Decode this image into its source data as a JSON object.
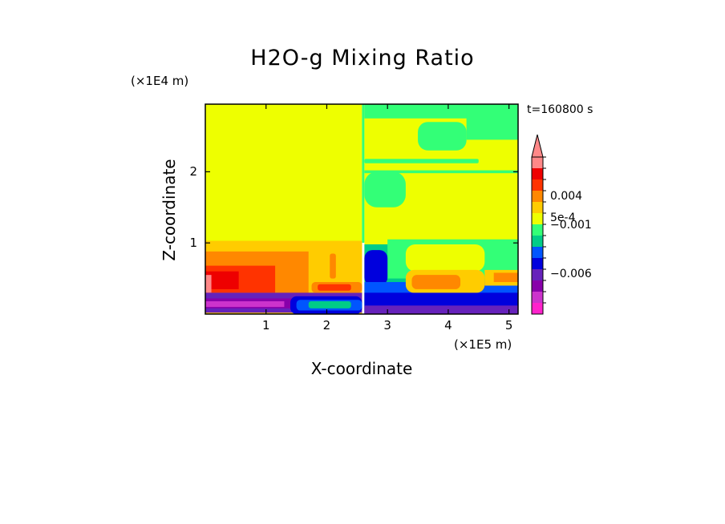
{
  "chart_data": {
    "type": "heatmap",
    "title": "H2O-g Mixing Ratio",
    "xlabel": "X-coordinate",
    "ylabel": "Z-coordinate",
    "x_scale_label": "(×1E5 m)",
    "y_scale_label": "(×1E4 m)",
    "time_label": "t=160800 s",
    "xlim": [
      0,
      5.15
    ],
    "ylim": [
      0,
      2.95
    ],
    "x_ticks": [
      1,
      2,
      3,
      4,
      5
    ],
    "y_ticks": [
      1,
      2
    ],
    "colorbar": {
      "labels": [
        {
          "text": "0.004",
          "level": 10.5
        },
        {
          "text": "5e-4",
          "level": 8.6
        },
        {
          "text": "−0.001",
          "level": 7.9
        },
        {
          "text": "−0.006",
          "level": 3.6
        }
      ],
      "colors": [
        "#ff22cc",
        "#cc33cc",
        "#8800aa",
        "#6622bb",
        "#0000dd",
        "#0055ff",
        "#00cc88",
        "#33ff77",
        "#eeff00",
        "#ffcc00",
        "#ff8800",
        "#ff3300",
        "#ee0000",
        "#ff8888"
      ]
    },
    "regions": [
      {
        "level": 8,
        "x": [
          0,
          2.58
        ],
        "y": [
          0,
          2.95
        ]
      },
      {
        "level": 7,
        "x": [
          2.58,
          2.62
        ],
        "y": [
          1.0,
          2.95
        ]
      },
      {
        "level": 9,
        "x": [
          0,
          2.58
        ],
        "y": [
          0.0,
          1.03
        ]
      },
      {
        "level": 10,
        "x": [
          0,
          1.7
        ],
        "y": [
          0.2,
          0.88
        ]
      },
      {
        "level": 11,
        "x": [
          0,
          1.15
        ],
        "y": [
          0.3,
          0.68
        ]
      },
      {
        "level": 12,
        "x": [
          0,
          0.55
        ],
        "y": [
          0.35,
          0.6
        ]
      },
      {
        "level": 13,
        "x": [
          0,
          0.1
        ],
        "y": [
          0.3,
          0.55
        ]
      },
      {
        "level": 3,
        "x": [
          0,
          2.58
        ],
        "y": [
          0.02,
          0.3
        ]
      },
      {
        "level": 2,
        "x": [
          0,
          1.5
        ],
        "y": [
          0.08,
          0.22
        ]
      },
      {
        "level": 1,
        "x": [
          0,
          1.3
        ],
        "y": [
          0.1,
          0.18
        ]
      },
      {
        "level": 4,
        "x": [
          1.4,
          2.58
        ],
        "y": [
          0.0,
          0.25
        ]
      },
      {
        "level": 5,
        "x": [
          1.5,
          2.58
        ],
        "y": [
          0.05,
          0.2
        ]
      },
      {
        "level": 6,
        "x": [
          1.7,
          2.4
        ],
        "y": [
          0.08,
          0.18
        ]
      },
      {
        "level": 10,
        "x": [
          1.75,
          2.58
        ],
        "y": [
          0.3,
          0.45
        ]
      },
      {
        "level": 11,
        "x": [
          1.85,
          2.4
        ],
        "y": [
          0.33,
          0.42
        ]
      },
      {
        "level": 9,
        "x": [
          2.0,
          2.2
        ],
        "y": [
          0.45,
          1.0
        ]
      },
      {
        "level": 10,
        "x": [
          2.05,
          2.15
        ],
        "y": [
          0.5,
          0.85
        ]
      },
      {
        "level": 8,
        "x": [
          2.62,
          5.15
        ],
        "y": [
          0,
          2.95
        ]
      },
      {
        "level": 7,
        "x": [
          2.62,
          5.15
        ],
        "y": [
          2.75,
          2.95
        ]
      },
      {
        "level": 7,
        "x": [
          3.5,
          4.3
        ],
        "y": [
          2.3,
          2.7
        ]
      },
      {
        "level": 7,
        "x": [
          4.3,
          5.15
        ],
        "y": [
          2.45,
          2.95
        ]
      },
      {
        "level": 7,
        "x": [
          2.62,
          5.15
        ],
        "y": [
          1.98,
          2.02
        ]
      },
      {
        "level": 7,
        "x": [
          2.62,
          4.5
        ],
        "y": [
          2.12,
          2.18
        ]
      },
      {
        "level": 7,
        "x": [
          2.62,
          3.3
        ],
        "y": [
          1.5,
          2.0
        ]
      },
      {
        "level": 6,
        "x": [
          2.62,
          5.15
        ],
        "y": [
          0,
          0.98
        ]
      },
      {
        "level": 7,
        "x": [
          3.0,
          5.15
        ],
        "y": [
          0.5,
          1.05
        ]
      },
      {
        "level": 8,
        "x": [
          3.3,
          4.6
        ],
        "y": [
          0.6,
          0.98
        ]
      },
      {
        "level": 4,
        "x": [
          2.62,
          3.0
        ],
        "y": [
          0.4,
          0.9
        ]
      },
      {
        "level": 5,
        "x": [
          2.62,
          5.15
        ],
        "y": [
          0.0,
          0.45
        ]
      },
      {
        "level": 4,
        "x": [
          2.62,
          5.15
        ],
        "y": [
          0.0,
          0.3
        ]
      },
      {
        "level": 3,
        "x": [
          2.62,
          5.15
        ],
        "y": [
          0.0,
          0.12
        ]
      },
      {
        "level": 9,
        "x": [
          3.3,
          4.6
        ],
        "y": [
          0.3,
          0.62
        ]
      },
      {
        "level": 10,
        "x": [
          3.4,
          4.2
        ],
        "y": [
          0.35,
          0.55
        ]
      },
      {
        "level": 9,
        "x": [
          4.6,
          5.15
        ],
        "y": [
          0.4,
          0.62
        ]
      },
      {
        "level": 10,
        "x": [
          4.75,
          5.15
        ],
        "y": [
          0.45,
          0.58
        ]
      }
    ]
  }
}
